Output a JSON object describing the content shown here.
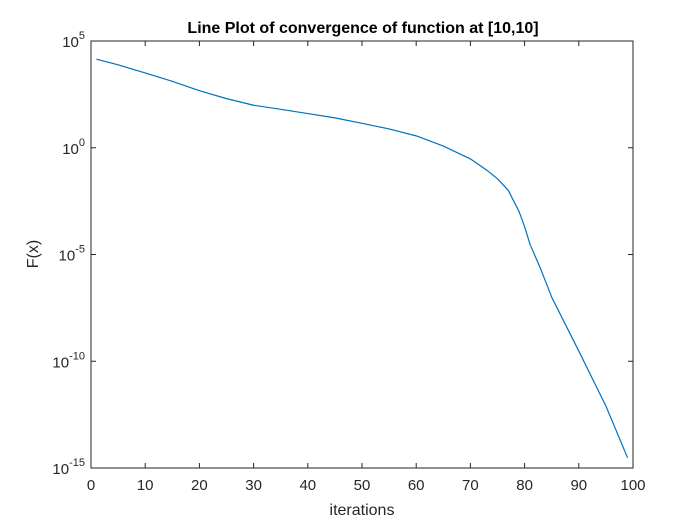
{
  "chart_data": {
    "type": "line",
    "title": "Line Plot of convergence of function at [10,10]",
    "xlabel": "iterations",
    "ylabel": "F(x)",
    "xlim": [
      0,
      100
    ],
    "ylim": [
      1e-15,
      100000
    ],
    "yscale": "log",
    "grid": false,
    "legend": "none",
    "x_ticks": [
      0,
      10,
      20,
      30,
      40,
      50,
      60,
      70,
      80,
      90,
      100
    ],
    "y_ticks": [
      {
        "value": 100000,
        "base": "10",
        "exp": "5"
      },
      {
        "value": 1,
        "base": "10",
        "exp": "0"
      },
      {
        "value": 1e-05,
        "base": "10",
        "exp": "-5"
      },
      {
        "value": 1e-10,
        "base": "10",
        "exp": "-10"
      },
      {
        "value": 1e-15,
        "base": "10",
        "exp": "-15"
      }
    ],
    "series": [
      {
        "color": "#0072bd",
        "x": [
          1,
          5,
          10,
          15,
          20,
          25,
          30,
          35,
          40,
          45,
          50,
          55,
          60,
          65,
          70,
          73,
          75,
          77,
          79,
          80,
          81,
          83,
          85,
          90,
          95,
          99
        ],
        "y": [
          14000,
          7700,
          3200,
          1300,
          470,
          200,
          98,
          63,
          40,
          25,
          14,
          7.6,
          3.6,
          1.2,
          0.3,
          0.09,
          0.035,
          0.01,
          0.001,
          0.0002,
          3e-05,
          2e-06,
          1e-07,
          3e-10,
          8e-13,
          3e-15
        ]
      }
    ]
  },
  "colors": {
    "line": "#0072bd",
    "axes": "#262626",
    "background": "#ffffff"
  }
}
